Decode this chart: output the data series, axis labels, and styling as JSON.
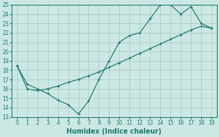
{
  "xlabel": "Humidex (Indice chaleur)",
  "x": [
    0,
    1,
    2,
    3,
    4,
    5,
    6,
    7,
    8,
    9,
    10,
    11,
    12,
    13,
    14,
    15,
    16,
    17,
    18,
    19
  ],
  "y_zigzag": [
    18.5,
    16.5,
    16.0,
    15.5,
    14.8,
    14.3,
    13.3,
    14.7,
    17.0,
    19.0,
    21.0,
    21.7,
    22.0,
    23.5,
    25.0,
    25.0,
    24.0,
    24.8,
    23.0,
    22.5
  ],
  "y_linear": [
    18.5,
    16.0,
    15.8,
    16.0,
    16.3,
    16.7,
    17.0,
    17.4,
    17.8,
    18.3,
    18.8,
    19.3,
    19.8,
    20.3,
    20.8,
    21.3,
    21.8,
    22.3,
    22.7,
    22.5
  ],
  "line_color": "#1a7a6e",
  "bg_color": "#cce8e4",
  "grid_color": "#aed0cc",
  "ylim": [
    13,
    25
  ],
  "xlim": [
    -0.5,
    19.5
  ],
  "yticks": [
    13,
    14,
    15,
    16,
    17,
    18,
    19,
    20,
    21,
    22,
    23,
    24,
    25
  ],
  "xticks": [
    0,
    1,
    2,
    3,
    4,
    5,
    6,
    7,
    8,
    9,
    10,
    11,
    12,
    13,
    14,
    15,
    16,
    17,
    18,
    19
  ],
  "tick_fontsize": 5.5,
  "xlabel_fontsize": 7
}
